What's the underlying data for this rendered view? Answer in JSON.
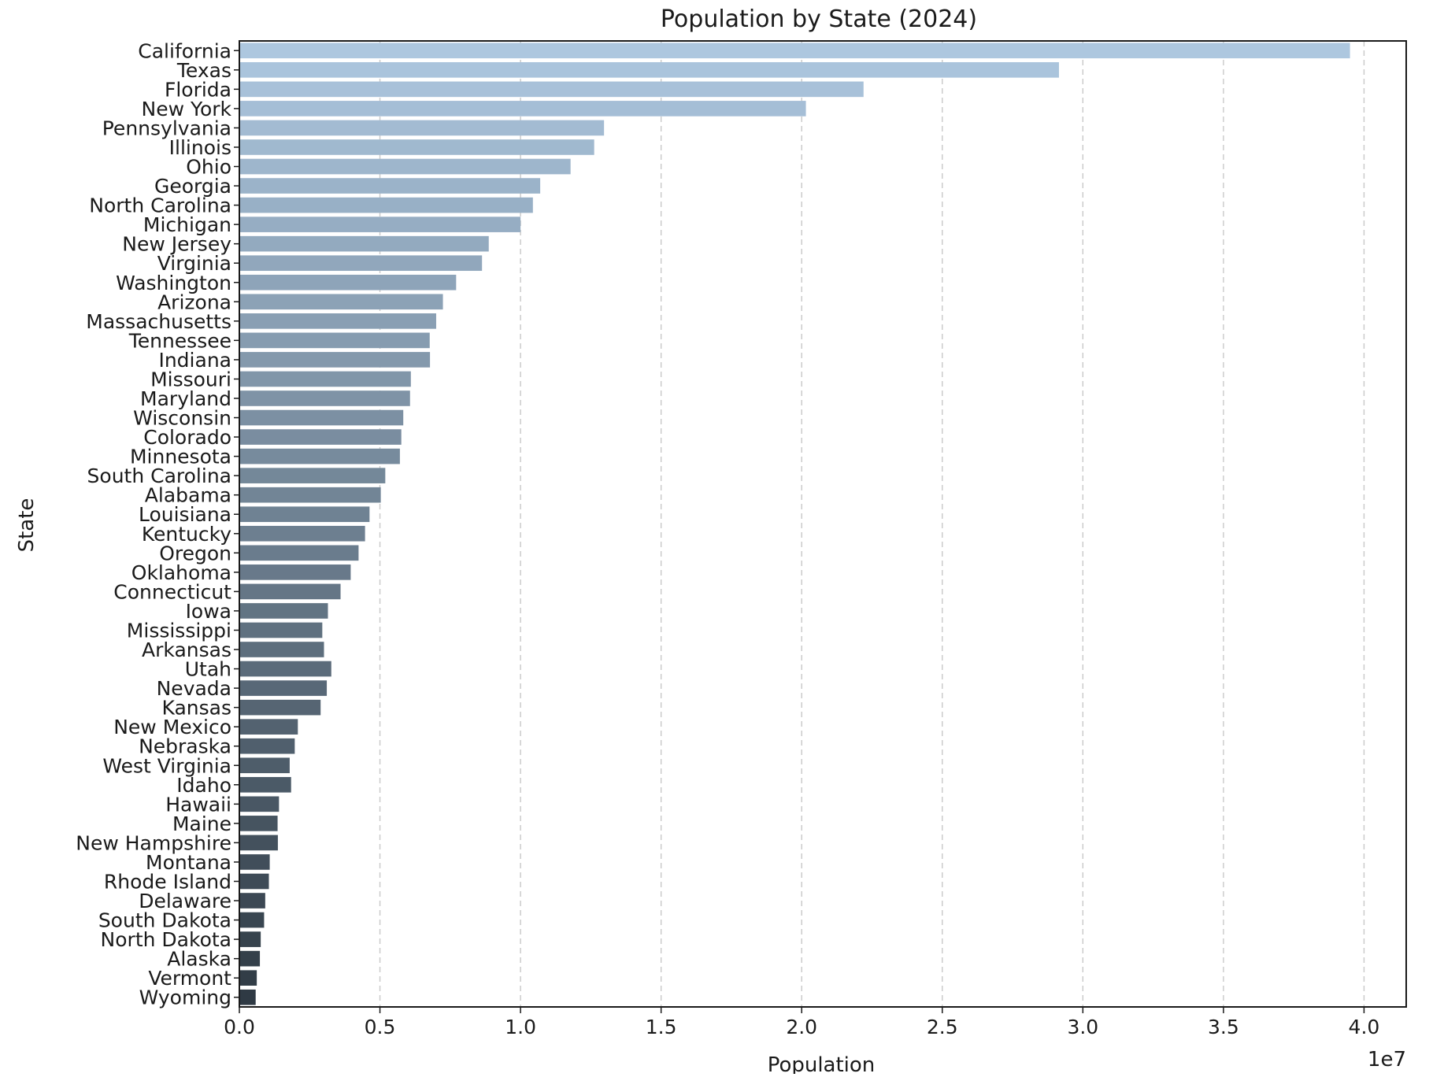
{
  "chart_data": {
    "type": "bar",
    "orientation": "horizontal",
    "title": "Population by State (2024)",
    "xlabel": "Population",
    "ylabel": "State",
    "x_offset_label": "1e7",
    "xlim": [
      0,
      41500000
    ],
    "xticks": [
      0,
      5000000,
      10000000,
      15000000,
      20000000,
      25000000,
      30000000,
      35000000,
      40000000
    ],
    "xtick_labels": [
      "0.0",
      "0.5",
      "1.0",
      "1.5",
      "2.0",
      "2.5",
      "3.0",
      "3.5",
      "4.0"
    ],
    "grid": "x-dashed",
    "categories": [
      "California",
      "Texas",
      "Florida",
      "New York",
      "Pennsylvania",
      "Illinois",
      "Ohio",
      "Georgia",
      "North Carolina",
      "Michigan",
      "New Jersey",
      "Virginia",
      "Washington",
      "Arizona",
      "Massachusetts",
      "Tennessee",
      "Indiana",
      "Missouri",
      "Maryland",
      "Wisconsin",
      "Colorado",
      "Minnesota",
      "South Carolina",
      "Alabama",
      "Louisiana",
      "Kentucky",
      "Oregon",
      "Oklahoma",
      "Connecticut",
      "Iowa",
      "Mississippi",
      "Arkansas",
      "Utah",
      "Nevada",
      "Kansas",
      "New Mexico",
      "Nebraska",
      "West Virginia",
      "Idaho",
      "Hawaii",
      "Maine",
      "New Hampshire",
      "Montana",
      "Rhode Island",
      "Delaware",
      "South Dakota",
      "North Dakota",
      "Alaska",
      "Vermont",
      "Wyoming"
    ],
    "values": [
      39500000,
      29150000,
      22200000,
      20150000,
      12970000,
      12620000,
      11780000,
      10700000,
      10440000,
      10000000,
      8870000,
      8630000,
      7710000,
      7240000,
      7000000,
      6770000,
      6780000,
      6100000,
      6070000,
      5830000,
      5760000,
      5710000,
      5190000,
      5030000,
      4630000,
      4470000,
      4240000,
      3960000,
      3600000,
      3150000,
      2950000,
      3010000,
      3270000,
      3110000,
      2890000,
      2080000,
      1970000,
      1790000,
      1840000,
      1410000,
      1360000,
      1370000,
      1080000,
      1050000,
      920000,
      880000,
      760000,
      730000,
      620000,
      580000
    ],
    "color_start": "#adc7df",
    "color_end": "#2f3a44"
  }
}
